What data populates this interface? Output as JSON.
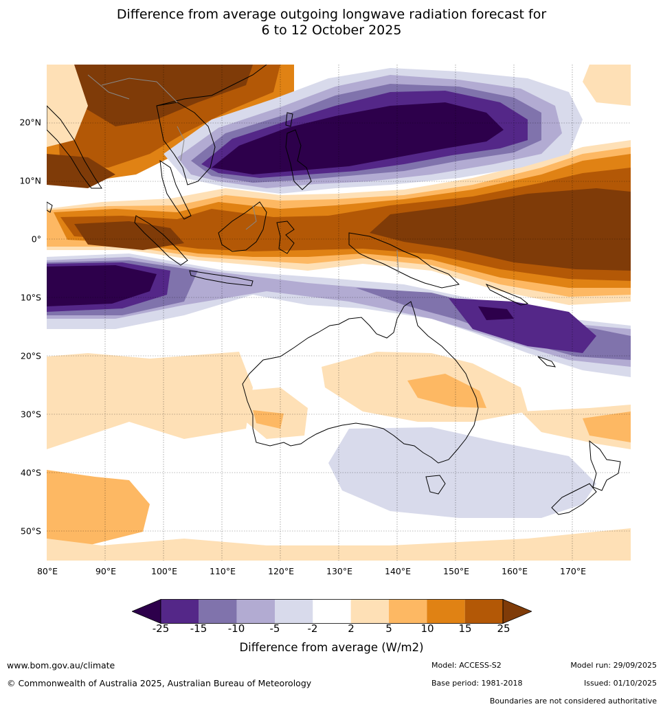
{
  "title": {
    "line1": "Difference from average outgoing longwave radiation forecast for",
    "line2": "6 to 12 October 2025"
  },
  "map": {
    "extent_lon": [
      80,
      180
    ],
    "extent_lat": [
      -55,
      30
    ],
    "lat_labels": [
      "20°N",
      "10°N",
      "0°",
      "10°S",
      "20°S",
      "30°S",
      "40°S",
      "50°S"
    ],
    "lon_labels": [
      "80°E",
      "90°E",
      "100°E",
      "110°E",
      "120°E",
      "130°E",
      "140°E",
      "150°E",
      "160°E",
      "170°E"
    ]
  },
  "colorbar": {
    "ticks": [
      "-25",
      "-15",
      "-10",
      "-5",
      "-2",
      "2",
      "5",
      "10",
      "15",
      "25"
    ],
    "colors": [
      "#2d004b",
      "#542788",
      "#8073ac",
      "#b2abd2",
      "#d8daeb",
      "#ffffff",
      "#fee0b6",
      "#fdb863",
      "#e08214",
      "#b35806",
      "#7f3b08"
    ],
    "label": "Difference from average (W/m2)"
  },
  "footer": {
    "url": "www.bom.gov.au/climate",
    "copyright": "© Commonwealth of Australia 2025, Australian Bureau of Meteorology",
    "model": "Model: ACCESS-S2",
    "base_period": "Base period: 1981-2018",
    "model_run": "Model run: 29/09/2025",
    "issued": "Issued: 01/10/2025",
    "disclaimer": "Boundaries are not considered authoritative"
  }
}
